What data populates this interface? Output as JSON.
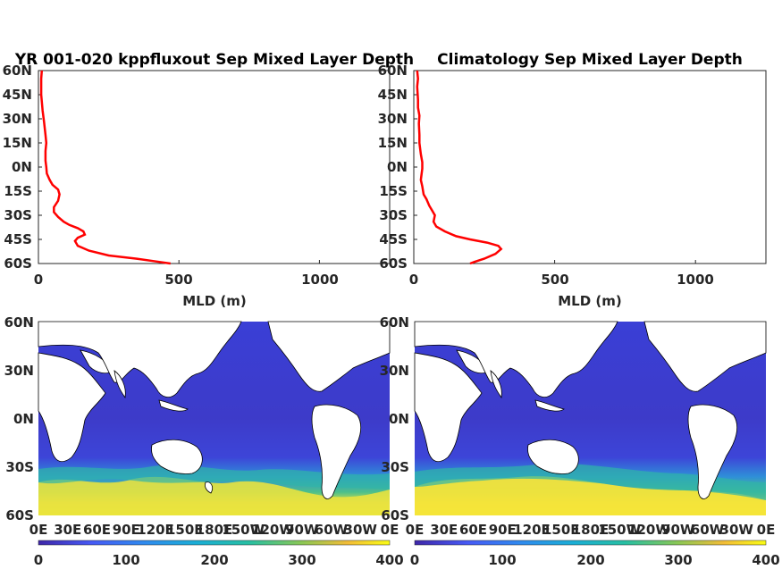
{
  "chart_data": [
    {
      "type": "line",
      "title": "YR 001-020 kppfluxout Sep Mixed Layer Depth",
      "xlabel": "MLD (m)",
      "ylabel": "",
      "xlim": [
        0,
        1250
      ],
      "ylim": [
        -60,
        60
      ],
      "xticks": [
        "0",
        "500",
        "1000"
      ],
      "yticks": [
        "60N",
        "45N",
        "30N",
        "15N",
        "0N",
        "15S",
        "30S",
        "45S",
        "60S"
      ],
      "series": [
        {
          "color": "#ff0000",
          "x": [
            470,
            430,
            350,
            250,
            180,
            140,
            130,
            140,
            165,
            160,
            140,
            110,
            90,
            70,
            55,
            55,
            70,
            75,
            70,
            50,
            40,
            30,
            28,
            25,
            25,
            28,
            25,
            20,
            15,
            10,
            10,
            12
          ],
          "y": [
            -60,
            -59,
            -57,
            -55,
            -52,
            -49,
            -46,
            -44,
            -42,
            -40,
            -38,
            -36,
            -34,
            -31,
            -28,
            -25,
            -21,
            -17,
            -14,
            -11,
            -8,
            -4,
            0,
            4,
            10,
            15,
            20,
            28,
            35,
            45,
            55,
            60
          ]
        }
      ]
    },
    {
      "type": "line",
      "title": "Climatology Sep Mixed Layer Depth",
      "xlabel": "MLD (m)",
      "ylabel": "",
      "xlim": [
        0,
        1250
      ],
      "ylim": [
        -60,
        60
      ],
      "xticks": [
        "0",
        "500",
        "1000"
      ],
      "yticks": [
        "60N",
        "45N",
        "30N",
        "15N",
        "0N",
        "15S",
        "30S",
        "45S",
        "60S"
      ],
      "series": [
        {
          "color": "#ff0000",
          "x": [
            200,
            215,
            250,
            290,
            310,
            300,
            260,
            200,
            150,
            110,
            80,
            70,
            75,
            65,
            55,
            45,
            35,
            30,
            25,
            28,
            30,
            30,
            25,
            20,
            20,
            18,
            20,
            15,
            15,
            12,
            15,
            12
          ],
          "y": [
            -60,
            -59,
            -57,
            -54,
            -51,
            -49,
            -47,
            -45,
            -43,
            -40,
            -37,
            -34,
            -30,
            -27,
            -24,
            -20,
            -17,
            -12,
            -8,
            -4,
            -1,
            3,
            8,
            15,
            20,
            27,
            32,
            37,
            42,
            50,
            55,
            60
          ]
        }
      ]
    },
    {
      "type": "heatmap",
      "title": "",
      "xticks": [
        "0E",
        "30E",
        "60E",
        "90E",
        "120E",
        "150E",
        "180E",
        "150W",
        "120W",
        "90W",
        "60W",
        "30W",
        "0E"
      ],
      "yticks": [
        "60N",
        "30N",
        "0N",
        "30S",
        "60S"
      ],
      "colorbar": {
        "min": 0,
        "max": 400,
        "ticks": [
          "0",
          "100",
          "200",
          "300",
          "400"
        ]
      }
    },
    {
      "type": "heatmap",
      "title": "",
      "xticks": [
        "0E",
        "30E",
        "60E",
        "90E",
        "120E",
        "150E",
        "180E",
        "150W",
        "120W",
        "90W",
        "60W",
        "30W",
        "0E"
      ],
      "yticks": [
        "60N",
        "30N",
        "0N",
        "30S",
        "60S"
      ],
      "colorbar": {
        "min": 0,
        "max": 400,
        "ticks": [
          "0",
          "100",
          "200",
          "300",
          "400"
        ]
      }
    }
  ]
}
